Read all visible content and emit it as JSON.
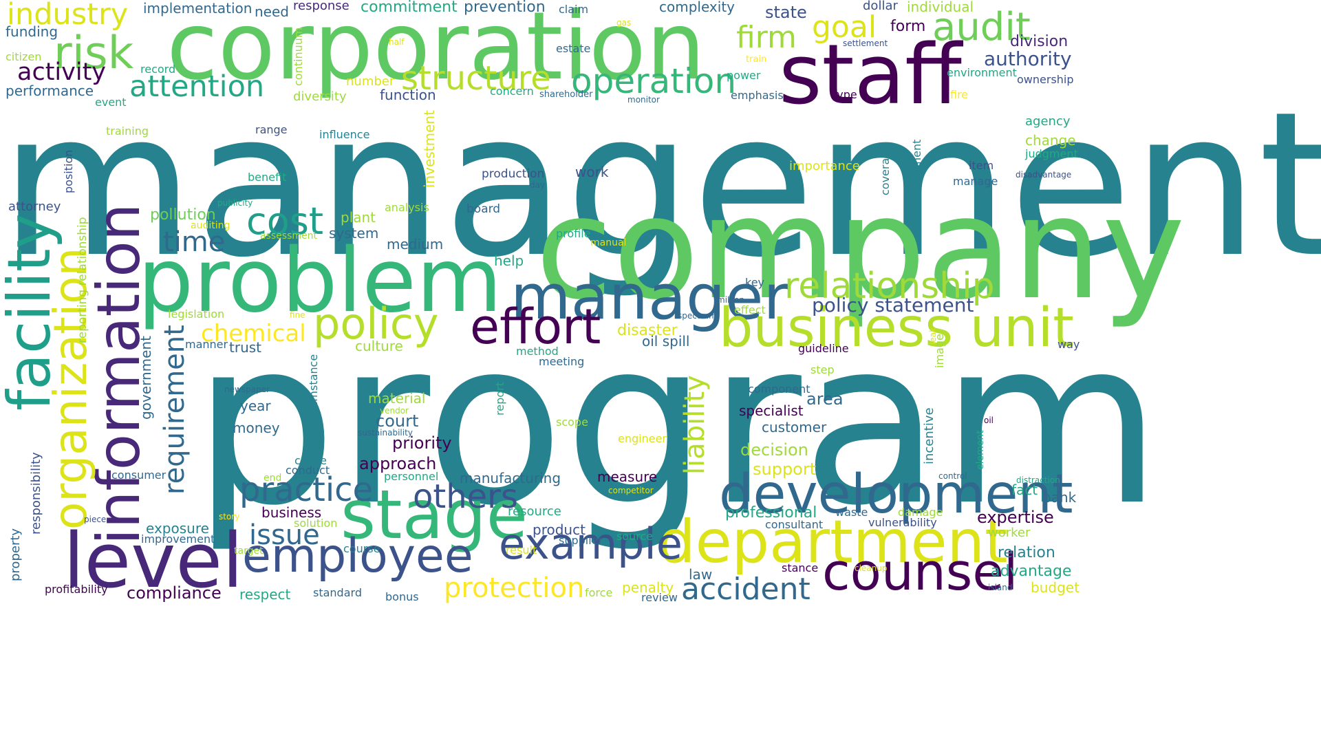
{
  "palette": {
    "c1": "#26828e",
    "c2": "#5ec962",
    "c3": "#440154",
    "c4": "#31688e",
    "c5": "#3b528b",
    "c6": "#b5de2b",
    "c7": "#35b779",
    "c8": "#482878",
    "c9": "#fde725",
    "c10": "#1f9e89",
    "c11": "#6ece58",
    "c12": "#dce319",
    "c13": "#3e4989",
    "c14": "#22a884",
    "c15": "#9fda3a"
  },
  "words": [
    {
      "text": "management",
      "c": "c1"
    },
    {
      "text": "program",
      "c": "c1"
    },
    {
      "text": "company",
      "c": "c2"
    },
    {
      "text": "corporation",
      "c": "c2"
    },
    {
      "text": "problem",
      "c": "c7"
    },
    {
      "text": "staff",
      "c": "c3"
    },
    {
      "text": "information",
      "c": "c8"
    },
    {
      "text": "facility",
      "c": "c10"
    },
    {
      "text": "manager",
      "c": "c4"
    },
    {
      "text": "development",
      "c": "c4"
    },
    {
      "text": "department",
      "c": "c12"
    },
    {
      "text": "level",
      "c": "c8"
    },
    {
      "text": "stage",
      "c": "c7"
    },
    {
      "text": "business unit",
      "c": "c6"
    },
    {
      "text": "employee",
      "c": "c5"
    },
    {
      "text": "organization",
      "c": "c12"
    },
    {
      "text": "effort",
      "c": "c3"
    },
    {
      "text": "policy",
      "c": "c6"
    },
    {
      "text": "counsel",
      "c": "c3"
    },
    {
      "text": "example",
      "c": "c5"
    },
    {
      "text": "risk",
      "c": "c11"
    },
    {
      "text": "audit",
      "c": "c11"
    },
    {
      "text": "structure",
      "c": "c6"
    },
    {
      "text": "operation",
      "c": "c7"
    },
    {
      "text": "relationship",
      "c": "c15"
    },
    {
      "text": "cost",
      "c": "c10"
    },
    {
      "text": "practice",
      "c": "c4"
    },
    {
      "text": "others",
      "c": "c5"
    },
    {
      "text": "requirement",
      "c": "c4"
    },
    {
      "text": "liability",
      "c": "c6"
    },
    {
      "text": "accident",
      "c": "c4"
    },
    {
      "text": "protection",
      "c": "c9"
    },
    {
      "text": "industry",
      "c": "c12"
    },
    {
      "text": "attention",
      "c": "c14"
    },
    {
      "text": "firm",
      "c": "c15"
    },
    {
      "text": "goal",
      "c": "c12"
    },
    {
      "text": "activity",
      "c": "c3"
    },
    {
      "text": "time",
      "c": "c4"
    },
    {
      "text": "chemical",
      "c": "c9"
    },
    {
      "text": "issue",
      "c": "c4"
    },
    {
      "text": "authority",
      "c": "c5"
    },
    {
      "text": "policy statement",
      "c": "c5"
    },
    {
      "text": "implementation",
      "c": "c4"
    },
    {
      "text": "response",
      "c": "c8"
    },
    {
      "text": "commitment",
      "c": "c14"
    },
    {
      "text": "prevention",
      "c": "c4"
    },
    {
      "text": "claim",
      "c": "c4"
    },
    {
      "text": "gas",
      "c": "c12"
    },
    {
      "text": "complexity",
      "c": "c4"
    },
    {
      "text": "state",
      "c": "c5"
    },
    {
      "text": "dollar",
      "c": "c5"
    },
    {
      "text": "individual",
      "c": "c15"
    },
    {
      "text": "need",
      "c": "c4"
    },
    {
      "text": "funding",
      "c": "c4"
    },
    {
      "text": "form",
      "c": "c3"
    },
    {
      "text": "settlement",
      "c": "c5"
    },
    {
      "text": "citizen",
      "c": "c15"
    },
    {
      "text": "half",
      "c": "c12"
    },
    {
      "text": "continuum",
      "c": "c15"
    },
    {
      "text": "estate",
      "c": "c4"
    },
    {
      "text": "train",
      "c": "c9"
    },
    {
      "text": "division",
      "c": "c8"
    },
    {
      "text": "record",
      "c": "c14"
    },
    {
      "text": "number",
      "c": "c12"
    },
    {
      "text": "power",
      "c": "c14"
    },
    {
      "text": "environment",
      "c": "c14"
    },
    {
      "text": "ownership",
      "c": "c5"
    },
    {
      "text": "performance",
      "c": "c4"
    },
    {
      "text": "diversity",
      "c": "c15"
    },
    {
      "text": "function",
      "c": "c5"
    },
    {
      "text": "concern",
      "c": "c14"
    },
    {
      "text": "shareholder",
      "c": "c4"
    },
    {
      "text": "emphasis",
      "c": "c4"
    },
    {
      "text": "type",
      "c": "c3"
    },
    {
      "text": "fire",
      "c": "c9"
    },
    {
      "text": "event",
      "c": "c14"
    },
    {
      "text": "monitor",
      "c": "c4"
    },
    {
      "text": "training",
      "c": "c15"
    },
    {
      "text": "range",
      "c": "c5"
    },
    {
      "text": "influence",
      "c": "c1"
    },
    {
      "text": "investment",
      "c": "c12"
    },
    {
      "text": "coverage",
      "c": "c1"
    },
    {
      "text": "statement",
      "c": "c1"
    },
    {
      "text": "agency",
      "c": "c14"
    },
    {
      "text": "change",
      "c": "c15"
    },
    {
      "text": "judgment",
      "c": "c14"
    },
    {
      "text": "position",
      "c": "c5"
    },
    {
      "text": "benefit",
      "c": "c14"
    },
    {
      "text": "production",
      "c": "c5"
    },
    {
      "text": "work",
      "c": "c5"
    },
    {
      "text": "importance",
      "c": "c12"
    },
    {
      "text": "item",
      "c": "c5"
    },
    {
      "text": "disadvantage",
      "c": "c5"
    },
    {
      "text": "day",
      "c": "c4"
    },
    {
      "text": "manage",
      "c": "c4"
    },
    {
      "text": "attorney",
      "c": "c5"
    },
    {
      "text": "publicity",
      "c": "c14"
    },
    {
      "text": "analysis",
      "c": "c15"
    },
    {
      "text": "board",
      "c": "c4"
    },
    {
      "text": "pollution",
      "c": "c11"
    },
    {
      "text": "plant",
      "c": "c15"
    },
    {
      "text": "auditing",
      "c": "c12"
    },
    {
      "text": "reporting relationship",
      "c": "c15"
    },
    {
      "text": "assessment",
      "c": "c15"
    },
    {
      "text": "system",
      "c": "c4"
    },
    {
      "text": "profile",
      "c": "c14"
    },
    {
      "text": "manual",
      "c": "c12"
    },
    {
      "text": "medium",
      "c": "c4"
    },
    {
      "text": "help",
      "c": "c14"
    },
    {
      "text": "key",
      "c": "c4"
    },
    {
      "text": "million",
      "c": "c4"
    },
    {
      "text": "effect",
      "c": "c15"
    },
    {
      "text": "legislation",
      "c": "c15"
    },
    {
      "text": "fine",
      "c": "c12"
    },
    {
      "text": "spectrum",
      "c": "c4"
    },
    {
      "text": "disaster",
      "c": "c12"
    },
    {
      "text": "oil spill",
      "c": "c4"
    },
    {
      "text": "manner",
      "c": "c4"
    },
    {
      "text": "trust",
      "c": "c4"
    },
    {
      "text": "culture",
      "c": "c15"
    },
    {
      "text": "government",
      "c": "c4"
    },
    {
      "text": "method",
      "c": "c14"
    },
    {
      "text": "meeting",
      "c": "c4"
    },
    {
      "text": "guideline",
      "c": "c3"
    },
    {
      "text": "leak",
      "c": "c12"
    },
    {
      "text": "image",
      "c": "c15"
    },
    {
      "text": "way",
      "c": "c5"
    },
    {
      "text": "circumstance",
      "c": "c1"
    },
    {
      "text": "step",
      "c": "c15"
    },
    {
      "text": "matter",
      "c": "c1"
    },
    {
      "text": "newspaper",
      "c": "c4"
    },
    {
      "text": "component",
      "c": "c4"
    },
    {
      "text": "area",
      "c": "c4"
    },
    {
      "text": "year",
      "c": "c4"
    },
    {
      "text": "material",
      "c": "c15"
    },
    {
      "text": "vendor",
      "c": "c15"
    },
    {
      "text": "report",
      "c": "c14"
    },
    {
      "text": "specialist",
      "c": "c3"
    },
    {
      "text": "incentive",
      "c": "c1"
    },
    {
      "text": "money",
      "c": "c4"
    },
    {
      "text": "court",
      "c": "c4"
    },
    {
      "text": "sustainability",
      "c": "c4"
    },
    {
      "text": "scope",
      "c": "c15"
    },
    {
      "text": "customer",
      "c": "c4"
    },
    {
      "text": "oil",
      "c": "c3"
    },
    {
      "text": "element",
      "c": "c14"
    },
    {
      "text": "responsibility",
      "c": "c5"
    },
    {
      "text": "priority",
      "c": "c3"
    },
    {
      "text": "engineer",
      "c": "c12"
    },
    {
      "text": "decision",
      "c": "c15"
    },
    {
      "text": "cause",
      "c": "c1"
    },
    {
      "text": "approach",
      "c": "c3"
    },
    {
      "text": "support",
      "c": "c12"
    },
    {
      "text": "consumer",
      "c": "c4"
    },
    {
      "text": "conduct",
      "c": "c4"
    },
    {
      "text": "end",
      "c": "c15"
    },
    {
      "text": "personnel",
      "c": "c14"
    },
    {
      "text": "manufacturing",
      "c": "c4"
    },
    {
      "text": "measure",
      "c": "c3"
    },
    {
      "text": "control",
      "c": "c4"
    },
    {
      "text": "distraction",
      "c": "c14"
    },
    {
      "text": "competitor",
      "c": "c12"
    },
    {
      "text": "fact",
      "c": "c14"
    },
    {
      "text": "bank",
      "c": "c4"
    },
    {
      "text": "business",
      "c": "c3"
    },
    {
      "text": "story",
      "c": "c9"
    },
    {
      "text": "piece",
      "c": "c5"
    },
    {
      "text": "solution",
      "c": "c15"
    },
    {
      "text": "resource",
      "c": "c14"
    },
    {
      "text": "professional",
      "c": "c14"
    },
    {
      "text": "waste",
      "c": "c4"
    },
    {
      "text": "damage",
      "c": "c15"
    },
    {
      "text": "expertise",
      "c": "c3"
    },
    {
      "text": "exposure",
      "c": "c1"
    },
    {
      "text": "product",
      "c": "c5"
    },
    {
      "text": "consultant",
      "c": "c4"
    },
    {
      "text": "vulnerability",
      "c": "c5"
    },
    {
      "text": "worker",
      "c": "c15"
    },
    {
      "text": "property",
      "c": "c4"
    },
    {
      "text": "improvement",
      "c": "c4"
    },
    {
      "text": "supplier",
      "c": "c4"
    },
    {
      "text": "source",
      "c": "c14"
    },
    {
      "text": "target",
      "c": "c15"
    },
    {
      "text": "course",
      "c": "c1"
    },
    {
      "text": "result",
      "c": "c12"
    },
    {
      "text": "relation",
      "c": "c1"
    },
    {
      "text": "law",
      "c": "c4"
    },
    {
      "text": "stance",
      "c": "c3"
    },
    {
      "text": "cleanup",
      "c": "c12"
    },
    {
      "text": "advantage",
      "c": "c14"
    },
    {
      "text": "profitability",
      "c": "c3"
    },
    {
      "text": "compliance",
      "c": "c3"
    },
    {
      "text": "respect",
      "c": "c14"
    },
    {
      "text": "standard",
      "c": "c4"
    },
    {
      "text": "bonus",
      "c": "c4"
    },
    {
      "text": "force",
      "c": "c15"
    },
    {
      "text": "penalty",
      "c": "c12"
    },
    {
      "text": "review",
      "c": "c4"
    },
    {
      "text": "island",
      "c": "c4"
    },
    {
      "text": "budget",
      "c": "c12"
    }
  ]
}
